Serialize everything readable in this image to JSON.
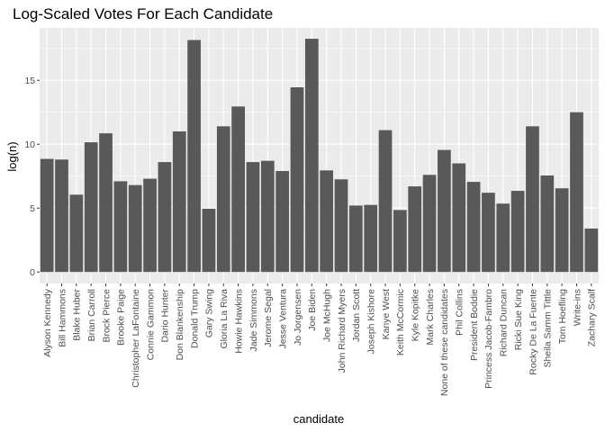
{
  "chart_data": {
    "type": "bar",
    "title": "Log-Scaled Votes For Each Candidate",
    "xlabel": "candidate",
    "ylabel": "log(n)",
    "ylim": [
      -0.9,
      19.1
    ],
    "yticks": [
      0,
      5,
      10,
      15
    ],
    "grid": true,
    "legend": "none",
    "colors": {
      "bar": "#595959",
      "panel": "#ebebeb",
      "grid_major": "#ffffff",
      "tick": "#333333"
    },
    "categories": [
      "Alyson Kennedy",
      "Bill Hammons",
      "Blake Huber",
      "Brian Carroll",
      "Brock Pierce",
      "Brooke Paige",
      "Christopher LaFontaine",
      "Connie Gammon",
      "Dario Hunter",
      "Don Blankenship",
      "Donald Trump",
      "Gary Swing",
      "Gloria La Riva",
      "Howie Hawkins",
      "Jade Simmons",
      "Jerome Segal",
      "Jesse Ventura",
      "Jo Jorgensen",
      "Joe Biden",
      "Joe McHugh",
      "John Richard Myers",
      "Jordan Scott",
      "Joseph Kishore",
      "Kanye West",
      "Keith McCormic",
      "Kyle Kopitke",
      "Mark Charles",
      "None of these candidates",
      "Phil Collins",
      "President Boddie",
      "Princess Jacob-Fambro",
      "Richard Duncan",
      "Ricki Sue King",
      "Rocky De La Fuente",
      "Sheila Samm Tittle",
      "Tom Hoefling",
      "Write-ins",
      "Zachary Scalf"
    ],
    "values": [
      8.85,
      8.8,
      6.05,
      10.15,
      10.85,
      7.1,
      6.8,
      7.3,
      8.6,
      11.0,
      18.15,
      4.95,
      11.4,
      12.95,
      8.6,
      8.7,
      7.9,
      14.45,
      18.25,
      7.95,
      7.25,
      5.2,
      5.25,
      11.1,
      4.85,
      6.7,
      7.6,
      9.55,
      8.5,
      7.05,
      6.2,
      5.35,
      6.35,
      11.4,
      7.55,
      6.55,
      12.5,
      3.4
    ]
  }
}
